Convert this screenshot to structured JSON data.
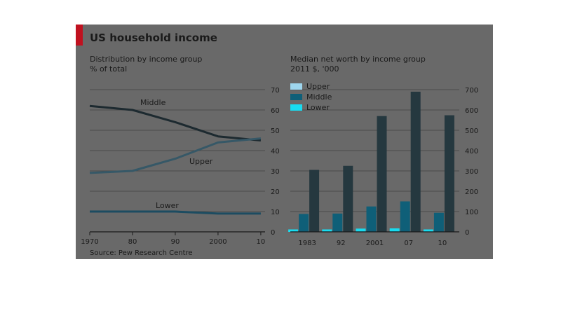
{
  "title": "US household income",
  "source": "Source: Pew Research Centre",
  "colors": {
    "panel": "#696969",
    "accent": "#c0111f",
    "grid": "#4a4a4a",
    "upper": "#9ed6ee",
    "middle": "#0f5f78",
    "lower": "#19dcf0",
    "dark": "#1f3a44"
  },
  "chart_data": [
    {
      "type": "line",
      "title": "Distribution by income group",
      "subtitle": "% of total",
      "x_ticks": [
        "1970",
        "80",
        "90",
        "2000",
        "10"
      ],
      "x": [
        1970,
        1980,
        1990,
        2000,
        2010
      ],
      "xlim": [
        1970,
        2011
      ],
      "ylim": [
        0,
        70
      ],
      "y_ticks": [
        0,
        10,
        20,
        30,
        40,
        50,
        60,
        70
      ],
      "grid": true,
      "series": [
        {
          "name": "Middle",
          "values": [
            62,
            60,
            54,
            47,
            45
          ]
        },
        {
          "name": "Upper",
          "values": [
            29,
            30,
            36,
            44,
            46
          ]
        },
        {
          "name": "Lower",
          "values": [
            10,
            10,
            10,
            9,
            9
          ]
        }
      ]
    },
    {
      "type": "bar",
      "title": "Median net worth by income group",
      "subtitle": "2011 $, '000",
      "categories": [
        "1983",
        "92",
        "2001",
        "07",
        "10"
      ],
      "ylim": [
        0,
        700
      ],
      "y_ticks": [
        0,
        100,
        200,
        300,
        400,
        500,
        600,
        700
      ],
      "grid": true,
      "legend_position": "top-left",
      "series": [
        {
          "name": "Upper",
          "values": [
            305,
            325,
            570,
            690,
            574
          ]
        },
        {
          "name": "Middle",
          "values": [
            88,
            90,
            125,
            150,
            94
          ]
        },
        {
          "name": "Lower",
          "values": [
            12,
            12,
            16,
            17,
            12
          ]
        }
      ]
    }
  ]
}
